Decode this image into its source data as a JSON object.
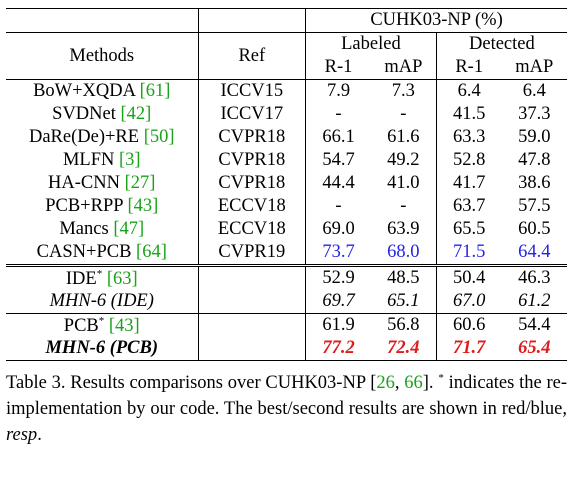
{
  "header": {
    "dataset": "CUHK03-NP (%)",
    "methods": "Methods",
    "ref": "Ref",
    "labeled": "Labeled",
    "detected": "Detected",
    "r1": "R-1",
    "map": "mAP"
  },
  "rows": [
    {
      "name": "BoW+XQDA ",
      "cite": "[61]",
      "ref": "ICCV15",
      "lr1": "7.9",
      "lmap": "7.3",
      "dr1": "6.4",
      "dmap": "6.4"
    },
    {
      "name": "SVDNet ",
      "cite": "[42]",
      "ref": "ICCV17",
      "lr1": "-",
      "lmap": "-",
      "dr1": "41.5",
      "dmap": "37.3"
    },
    {
      "name": "DaRe(De)+RE ",
      "cite": "[50]",
      "ref": "CVPR18",
      "lr1": "66.1",
      "lmap": "61.6",
      "dr1": "63.3",
      "dmap": "59.0"
    },
    {
      "name": "MLFN ",
      "cite": "[3]",
      "ref": "CVPR18",
      "lr1": "54.7",
      "lmap": "49.2",
      "dr1": "52.8",
      "dmap": "47.8"
    },
    {
      "name": "HA-CNN ",
      "cite": "[27]",
      "ref": "CVPR18",
      "lr1": "44.4",
      "lmap": "41.0",
      "dr1": "41.7",
      "dmap": "38.6"
    },
    {
      "name": "PCB+RPP ",
      "cite": "[43]",
      "ref": "ECCV18",
      "lr1": "-",
      "lmap": "-",
      "dr1": "63.7",
      "dmap": "57.5"
    },
    {
      "name": "Mancs ",
      "cite": "[47]",
      "ref": "ECCV18",
      "lr1": "69.0",
      "lmap": "63.9",
      "dr1": "65.5",
      "dmap": "60.5"
    },
    {
      "name": "CASN+PCB ",
      "cite": "[64]",
      "ref": "CVPR19",
      "lr1": "73.7",
      "lmap": "68.0",
      "dr1": "71.5",
      "dmap": "64.4"
    }
  ],
  "ide": {
    "name": "IDE",
    "star": "*",
    "cite": "[63]",
    "lr1": "52.9",
    "lmap": "48.5",
    "dr1": "50.4",
    "dmap": "46.3"
  },
  "mhn_ide": {
    "name": "MHN-6 (IDE)",
    "lr1": "69.7",
    "lmap": "65.1",
    "dr1": "67.0",
    "dmap": "61.2"
  },
  "pcb": {
    "name": "PCB",
    "star": "*",
    "cite": "[43]",
    "lr1": "61.9",
    "lmap": "56.8",
    "dr1": "60.6",
    "dmap": "54.4"
  },
  "mhn_pcb": {
    "name": "MHN-6 (PCB)",
    "lr1": "77.2",
    "lmap": "72.4",
    "dr1": "71.7",
    "dmap": "65.4"
  },
  "caption": {
    "part1": "Table 3. Results comparisons over CUHK03-NP ",
    "cite1": "26",
    "sep": ", ",
    "cite2": "66",
    "part2": ". ",
    "star": "*",
    "part3": " indicates the re-implementation by our code. The best/second results are shown in red/blue, ",
    "resp": "resp",
    "end": "."
  },
  "colors": {
    "best": "#e01b1b",
    "second": "#2323e8",
    "cite": "#1aa31a"
  }
}
